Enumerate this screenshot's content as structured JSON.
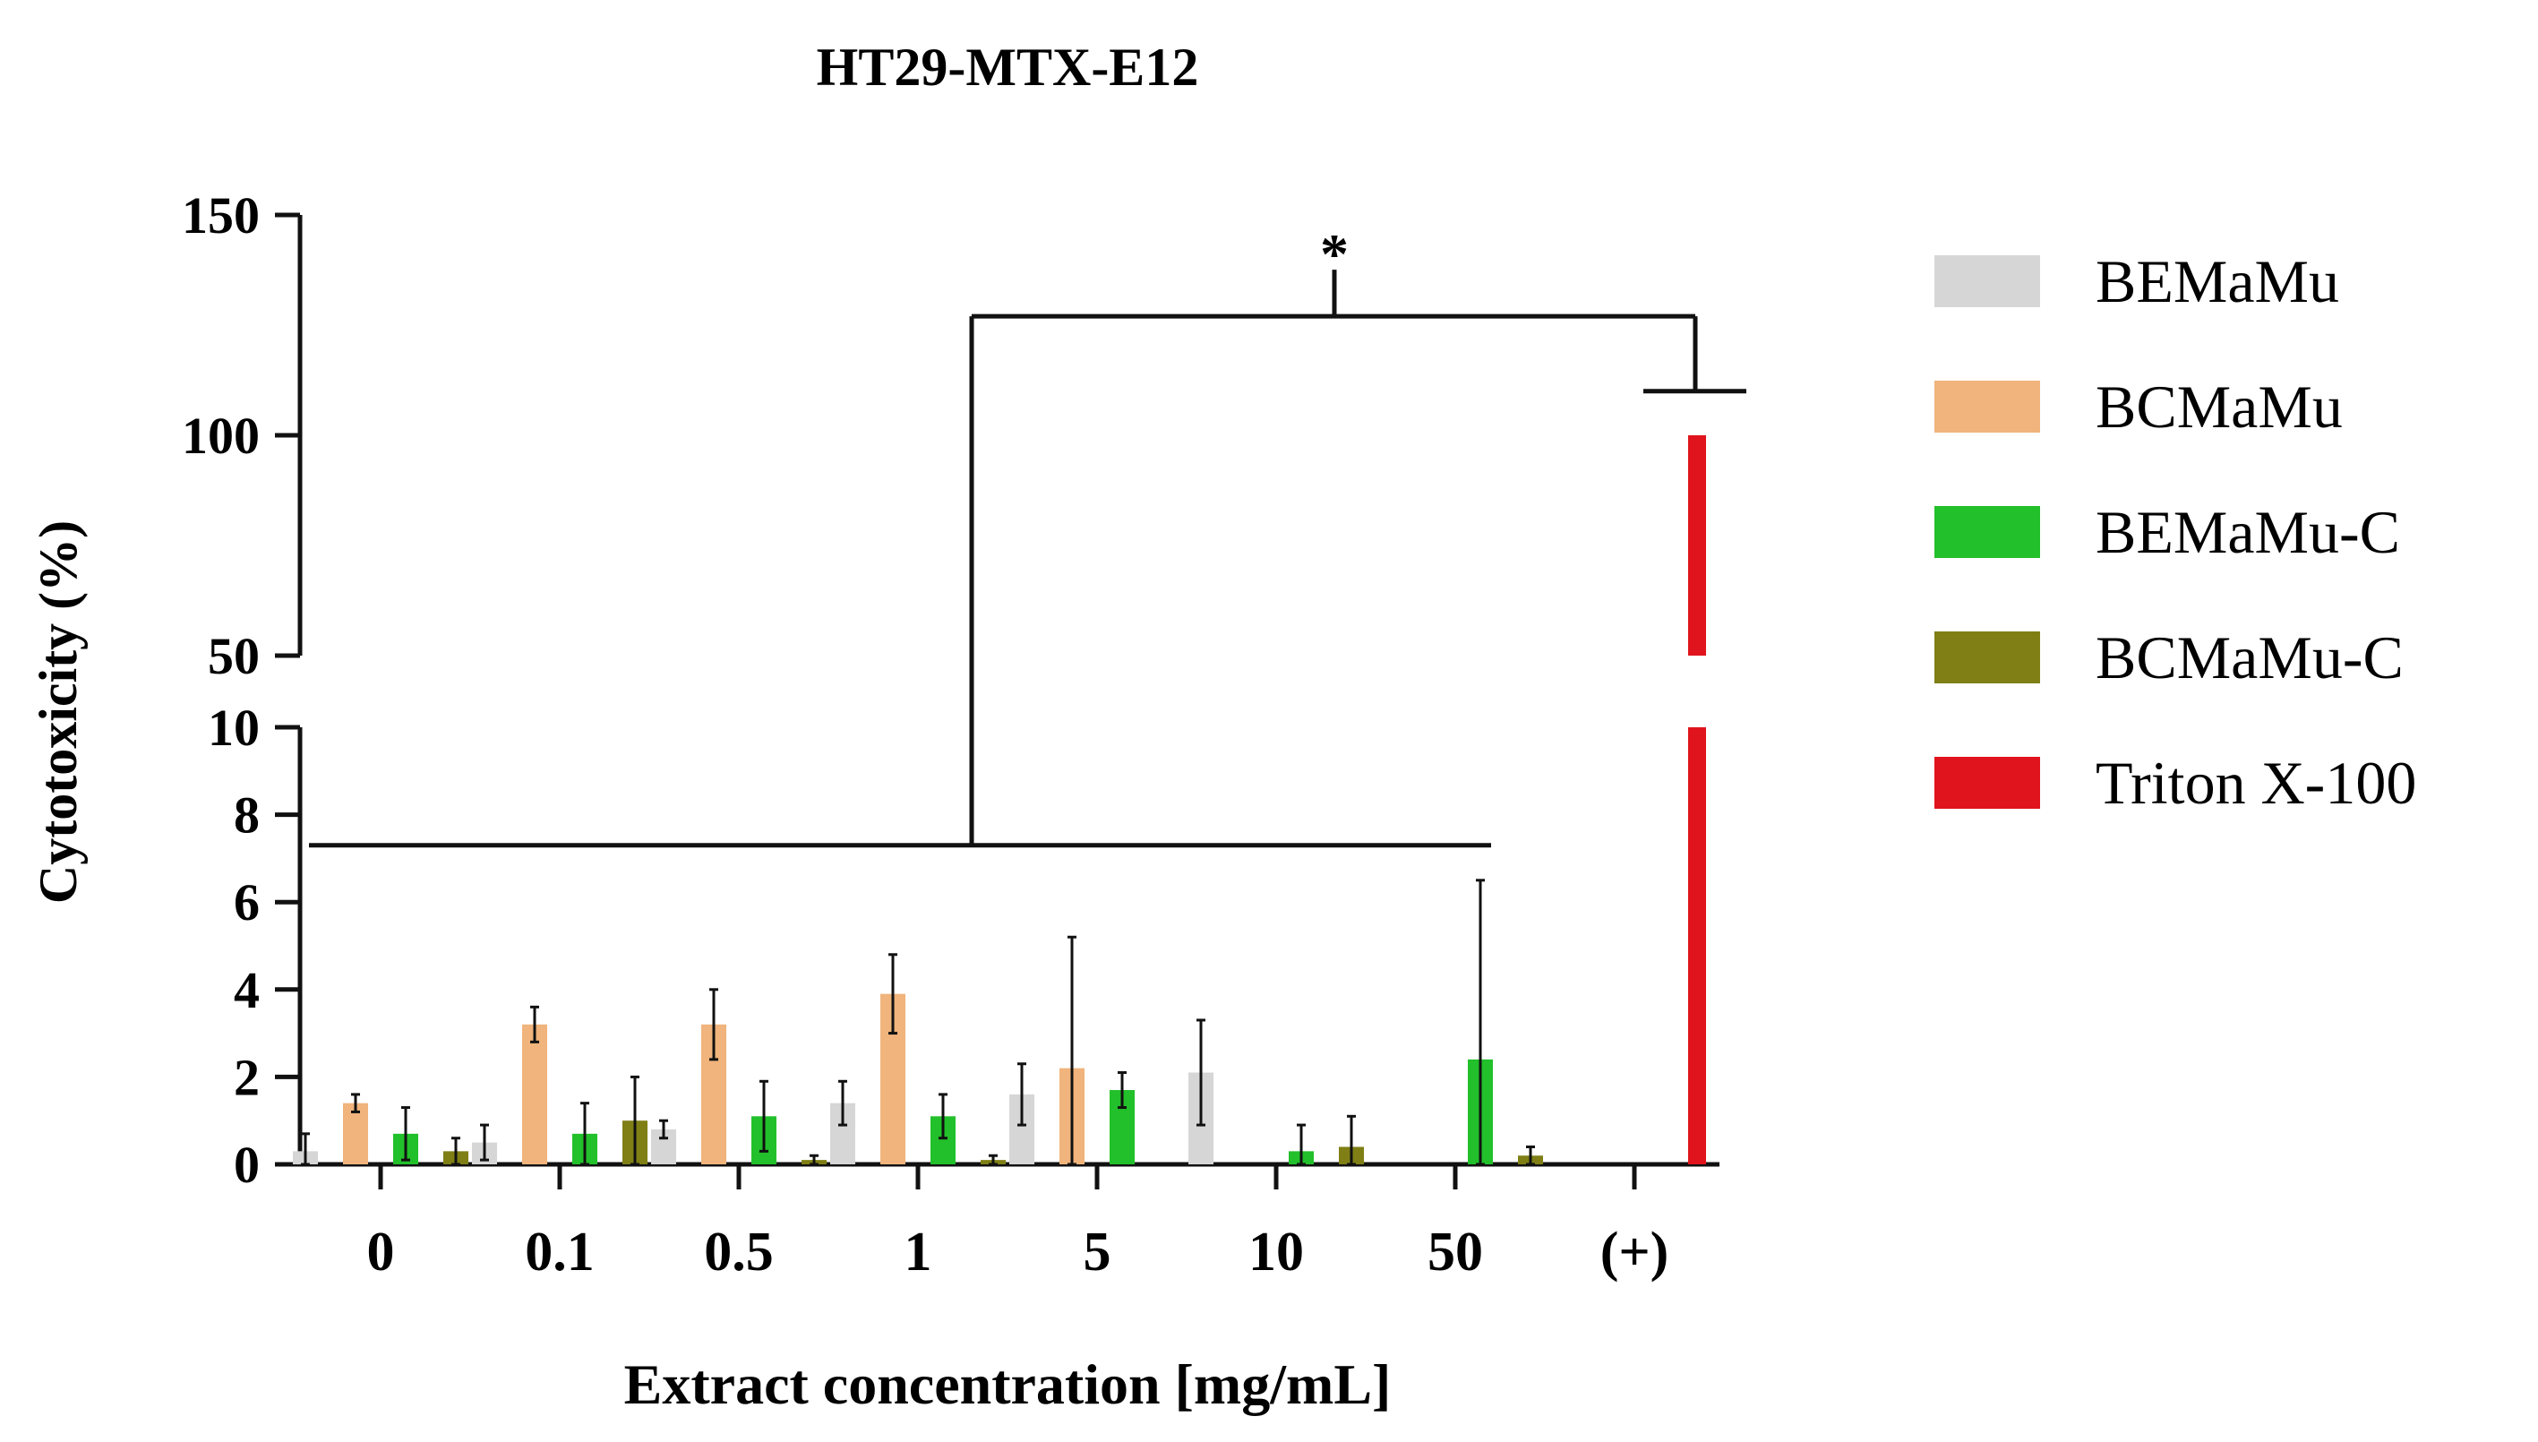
{
  "chart_data": {
    "type": "bar",
    "title": "HT29-MTX-E12",
    "xlabel": "Extract concentration [mg/mL]",
    "ylabel": "Cytotoxicity (%)",
    "categories": [
      "0",
      "0.1",
      "0.5",
      "1",
      "5",
      "10",
      "50",
      "(+)"
    ],
    "y_axis": {
      "broken": true,
      "lower_segment": {
        "range": [
          0,
          10
        ],
        "ticks": [
          "0",
          "2",
          "4",
          "6",
          "8",
          "10"
        ]
      },
      "upper_segment": {
        "range": [
          50,
          150
        ],
        "ticks": [
          "50",
          "100",
          "150"
        ]
      }
    },
    "series": [
      {
        "name": "BEMaMu",
        "color": "#d6d6d6",
        "values": [
          0.3,
          0.5,
          0.8,
          1.4,
          1.6,
          2.1,
          null,
          null
        ],
        "errors": [
          0.4,
          0.4,
          0.2,
          0.5,
          0.7,
          1.2,
          null,
          null
        ]
      },
      {
        "name": "BCMaMu",
        "color": "#f0b47c",
        "values": [
          1.4,
          3.2,
          3.2,
          3.9,
          2.2,
          null,
          null,
          null
        ],
        "errors": [
          0.2,
          0.4,
          0.8,
          0.9,
          3.0,
          null,
          null,
          null
        ]
      },
      {
        "name": "BEMaMu-C",
        "color": "#22c02a",
        "values": [
          0.7,
          0.7,
          1.1,
          1.1,
          1.7,
          0.3,
          2.4,
          null
        ],
        "errors": [
          0.6,
          0.7,
          0.8,
          0.5,
          0.4,
          0.6,
          4.1,
          null
        ]
      },
      {
        "name": "BCMaMu-C",
        "color": "#7f7f16",
        "values": [
          0.3,
          1.0,
          0.1,
          0.1,
          null,
          0.4,
          0.2,
          null
        ],
        "errors": [
          0.3,
          1.0,
          0.1,
          0.1,
          null,
          0.7,
          0.2,
          null
        ]
      },
      {
        "name": "Triton X-100",
        "color": "#e0141c",
        "values": [
          null,
          null,
          null,
          null,
          null,
          null,
          null,
          100
        ],
        "errors": [
          null,
          null,
          null,
          null,
          null,
          null,
          null,
          0
        ]
      }
    ],
    "significance": {
      "label": "*",
      "from_categories": [
        "0",
        "50"
      ],
      "to_category": "(+)"
    },
    "legend_position": "right",
    "grid": false
  }
}
